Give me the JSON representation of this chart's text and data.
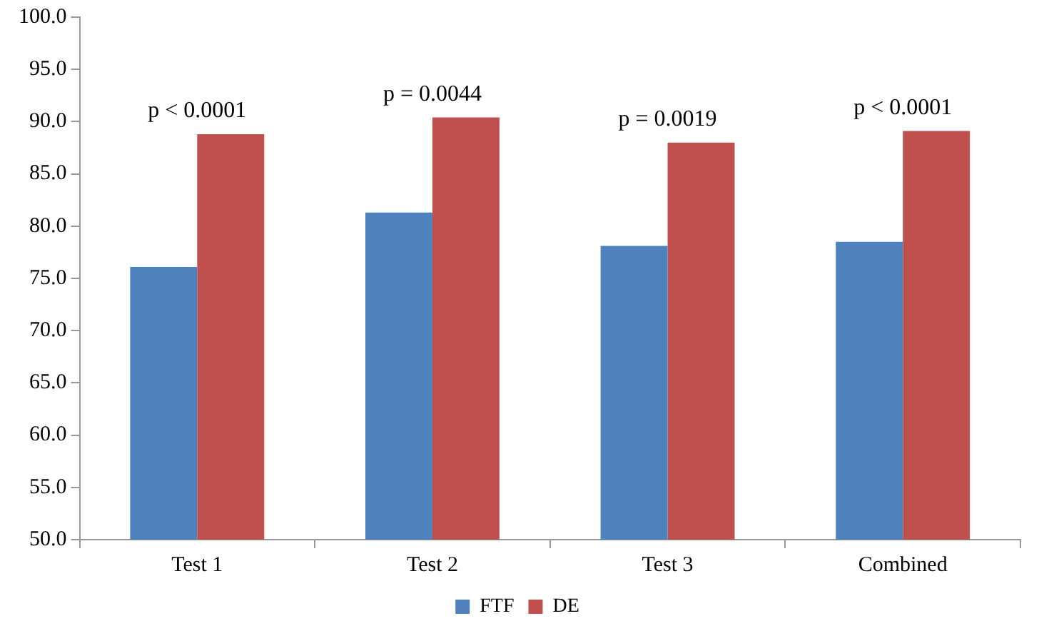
{
  "chart_data": {
    "type": "bar",
    "categories": [
      "Test 1",
      "Test 2",
      "Test 3",
      "Combined"
    ],
    "series": [
      {
        "name": "FTF",
        "color": "#4f81bd",
        "values": [
          76.1,
          81.3,
          78.1,
          78.5
        ]
      },
      {
        "name": "DE",
        "color": "#c0504d",
        "values": [
          88.8,
          90.4,
          88.0,
          89.1
        ]
      }
    ],
    "ylim": [
      50,
      100
    ],
    "yticks": [
      {
        "value": 50,
        "label": "50.0"
      },
      {
        "value": 55,
        "label": "55.0"
      },
      {
        "value": 60,
        "label": "60.0"
      },
      {
        "value": 65,
        "label": "65.0"
      },
      {
        "value": 70,
        "label": "70.0"
      },
      {
        "value": 75,
        "label": "75.0"
      },
      {
        "value": 80,
        "label": "80.0"
      },
      {
        "value": 85,
        "label": "85.0"
      },
      {
        "value": 90,
        "label": "90.0"
      },
      {
        "value": 95,
        "label": "95.0"
      },
      {
        "value": 100,
        "label": "100.0"
      }
    ],
    "grid": false,
    "legend": "bottom",
    "annotations": [
      {
        "text": "p < 0.0001",
        "x": "Test 1",
        "y": 88.8
      },
      {
        "text": "p = 0.0044",
        "x": "Test 2",
        "y": 90.4
      },
      {
        "text": "p = 0.0019",
        "x": "Test 3",
        "y": 88.0
      },
      {
        "text": "p < 0.0001",
        "x": "Combined",
        "y": 89.1
      }
    ]
  }
}
